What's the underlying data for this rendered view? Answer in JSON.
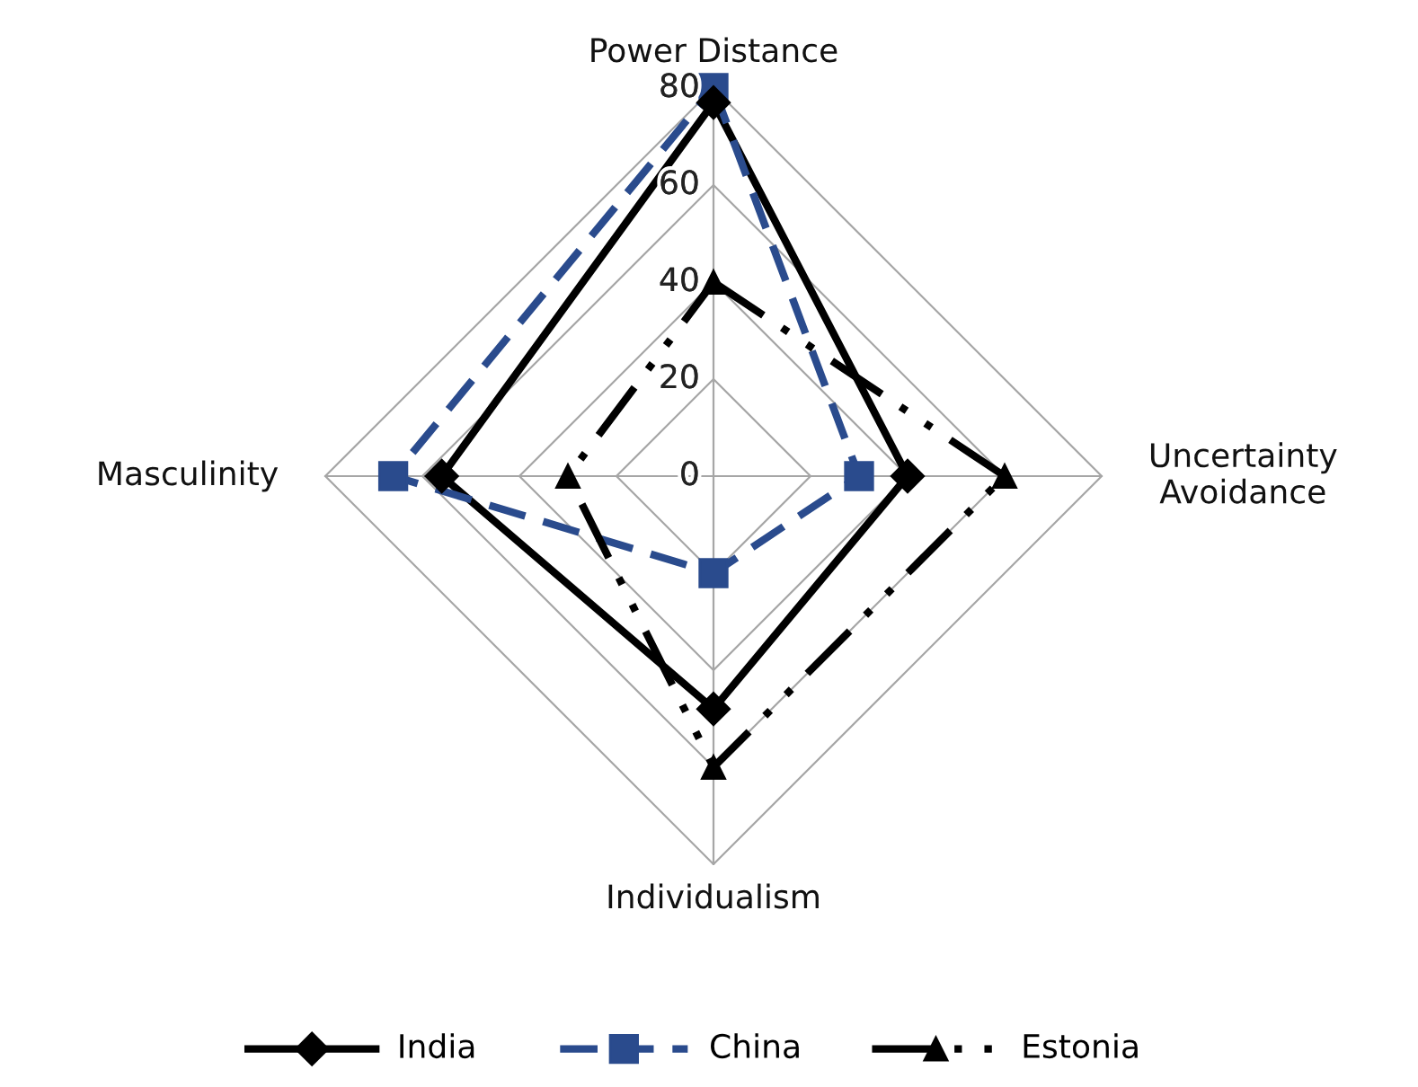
{
  "chart_data": {
    "type": "radar",
    "categories": [
      "Power Distance",
      "Uncertainty\nAvoidance",
      "Individualism",
      "Masculinity"
    ],
    "ylim": [
      0,
      80
    ],
    "yticks": [
      0,
      20,
      40,
      60,
      80
    ],
    "grid": true,
    "legend": "bottom",
    "series": [
      {
        "name": "India",
        "color": "#000000",
        "values": [
          77,
          40,
          48,
          56
        ],
        "marker": "diamond",
        "line_style": "solid"
      },
      {
        "name": "China",
        "color": "#2a4b8d",
        "values": [
          80,
          30,
          20,
          66
        ],
        "marker": "square",
        "line_style": "dashed"
      },
      {
        "name": "Estonia",
        "color": "#000000",
        "values": [
          40,
          60,
          60,
          30
        ],
        "marker": "triangle",
        "line_style": "dotted"
      }
    ]
  }
}
